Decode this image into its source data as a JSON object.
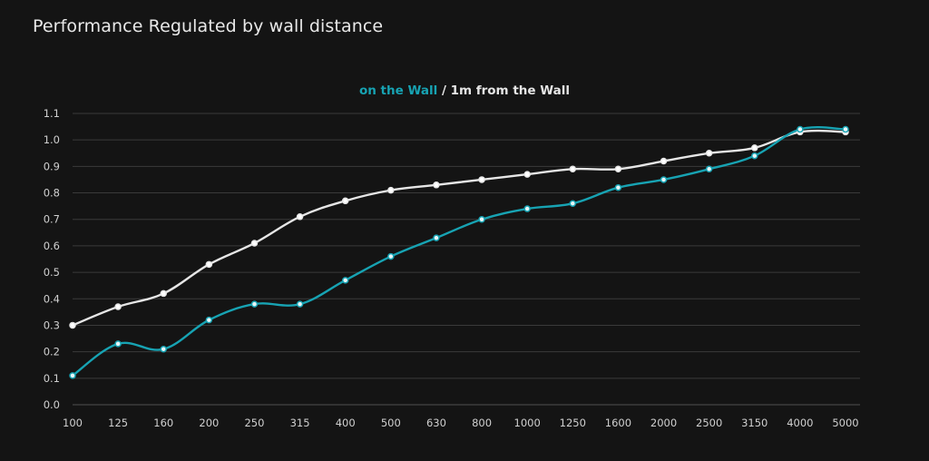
{
  "page": {
    "title": "Performance Regulated by wall distance"
  },
  "colors": {
    "background": "#141414",
    "grid": "#3a3a3a",
    "axis_text": "#d0d0d0",
    "series_wall": "#17a3b3",
    "series_1m": "#e6e6e6"
  },
  "chart_data": {
    "type": "line",
    "title": "",
    "xlabel": "",
    "ylabel": "",
    "categories": [
      "100",
      "125",
      "160",
      "200",
      "250",
      "315",
      "400",
      "500",
      "630",
      "800",
      "1000",
      "1250",
      "1600",
      "2000",
      "2500",
      "3150",
      "4000",
      "5000"
    ],
    "ylim": [
      0.0,
      1.1
    ],
    "yticks": [
      "0.0",
      "0.1",
      "0.2",
      "0.3",
      "0.4",
      "0.5",
      "0.6",
      "0.7",
      "0.8",
      "0.9",
      "1.0",
      "1.1"
    ],
    "grid": true,
    "legend_position": "top-center",
    "legend_separator": "/",
    "series": [
      {
        "name": "on the Wall",
        "color": "#17a3b3",
        "values": [
          0.11,
          0.23,
          0.21,
          0.32,
          0.38,
          0.38,
          0.47,
          0.56,
          0.63,
          0.7,
          0.74,
          0.76,
          0.82,
          0.85,
          0.89,
          0.94,
          1.04,
          1.04
        ]
      },
      {
        "name": "1m from the Wall",
        "color": "#e6e6e6",
        "values": [
          0.3,
          0.37,
          0.42,
          0.53,
          0.61,
          0.71,
          0.77,
          0.81,
          0.83,
          0.85,
          0.87,
          0.89,
          0.89,
          0.92,
          0.95,
          0.97,
          1.03,
          1.03
        ]
      }
    ]
  }
}
